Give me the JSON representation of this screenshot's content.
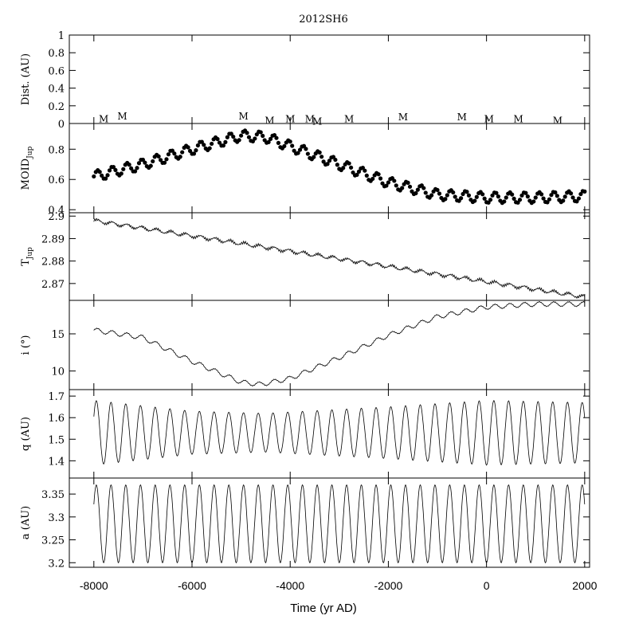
{
  "chart_data": {
    "type": "line",
    "title": "2012SH6",
    "xlabel": "Time (yr AD)",
    "xlim": [
      -8500,
      2100
    ],
    "x_ticks": [
      -8000,
      -6000,
      -4000,
      -2000,
      0,
      2000
    ],
    "x_tick_labels": [
      "-8000",
      "-6000",
      "-4000",
      "-2000",
      "0",
      "2000"
    ],
    "panels": [
      {
        "id": "dist",
        "ylabel": "Dist. (AU)",
        "ylim": [
          0,
          1
        ],
        "y_ticks": [
          0,
          0.2,
          0.4,
          0.6,
          0.8,
          1
        ],
        "y_tick_labels": [
          "0",
          "0.2",
          "0.4",
          "0.6",
          "0.8",
          "1"
        ],
        "marker_label": "M",
        "markers": [
          {
            "t": -7800,
            "d": 0.06
          },
          {
            "t": -7420,
            "d": 0.09
          },
          {
            "t": -4950,
            "d": 0.09
          },
          {
            "t": -4420,
            "d": 0.04
          },
          {
            "t": -4000,
            "d": 0.06
          },
          {
            "t": -3600,
            "d": 0.06
          },
          {
            "t": -3450,
            "d": 0.03
          },
          {
            "t": -2800,
            "d": 0.06
          },
          {
            "t": -1700,
            "d": 0.08
          },
          {
            "t": -500,
            "d": 0.08
          },
          {
            "t": 50,
            "d": 0.06
          },
          {
            "t": 650,
            "d": 0.06
          },
          {
            "t": 1450,
            "d": 0.04
          }
        ]
      },
      {
        "id": "moid",
        "ylabel": "MOID",
        "ylabel_sub": "Jup",
        "ylim": [
          0.38,
          0.97
        ],
        "y_ticks": [
          0.4,
          0.6,
          0.8
        ],
        "y_tick_labels": [
          "0.4",
          "0.6",
          "0.8"
        ],
        "style": "dots",
        "trend": {
          "t": [
            -8000,
            -7000,
            -6000,
            -5000,
            -4500,
            -4000,
            -3000,
            -2000,
            -1000,
            0,
            1000,
            2000
          ],
          "v": [
            0.62,
            0.7,
            0.8,
            0.89,
            0.88,
            0.82,
            0.7,
            0.58,
            0.5,
            0.48,
            0.48,
            0.49
          ]
        },
        "oscillation": {
          "amplitude": 0.035,
          "period_yr": 300
        }
      },
      {
        "id": "tjup",
        "ylabel": "T",
        "ylabel_sub": "Jup",
        "ylim": [
          2.8625,
          2.9015
        ],
        "y_ticks": [
          2.87,
          2.88,
          2.89,
          2.9
        ],
        "y_tick_labels": [
          "2.87",
          "2.88",
          "2.89",
          "2.9"
        ],
        "style": "line",
        "trend": {
          "t": [
            -8000,
            2000
          ],
          "v": [
            2.898,
            2.864
          ]
        },
        "oscillation": {
          "amplitude": 0.0007,
          "period_yr": 300
        }
      },
      {
        "id": "incl",
        "ylabel": "i (°)",
        "ylim": [
          7.5,
          19.5
        ],
        "y_ticks": [
          10,
          15
        ],
        "y_tick_labels": [
          "10",
          "15"
        ],
        "style": "line",
        "trend": {
          "t": [
            -8000,
            -7000,
            -6000,
            -5000,
            -4600,
            -4000,
            -3000,
            -2000,
            -1000,
            0,
            1000,
            2000
          ],
          "v": [
            15.5,
            14.5,
            11.3,
            8.5,
            8.2,
            9.0,
            11.8,
            14.8,
            17.3,
            18.6,
            19.0,
            19.0
          ]
        },
        "oscillation": {
          "amplitude": 0.3,
          "period_yr": 300
        }
      },
      {
        "id": "q",
        "ylabel": "q (AU)",
        "ylim": [
          1.32,
          1.73
        ],
        "y_ticks": [
          1.4,
          1.5,
          1.6,
          1.7
        ],
        "y_tick_labels": [
          "1.4",
          "1.5",
          "1.6",
          "1.7"
        ],
        "style": "line",
        "mean": 1.53,
        "amplitude_points": {
          "t": [
            -8000,
            -6000,
            -4500,
            -2000,
            0,
            2000
          ],
          "a": [
            0.15,
            0.1,
            0.09,
            0.12,
            0.15,
            0.14
          ]
        },
        "period_yr": 300
      },
      {
        "id": "a",
        "ylabel": "a (AU)",
        "ylim": [
          3.19,
          3.385
        ],
        "y_ticks": [
          3.2,
          3.25,
          3.3,
          3.35
        ],
        "y_tick_labels": [
          "3.2",
          "3.25",
          "3.3",
          "3.35"
        ],
        "style": "line",
        "mean": 3.285,
        "amplitude_points": {
          "t": [
            -8000,
            2000
          ],
          "a": [
            0.085,
            0.085
          ]
        },
        "period_yr": 300
      }
    ]
  }
}
